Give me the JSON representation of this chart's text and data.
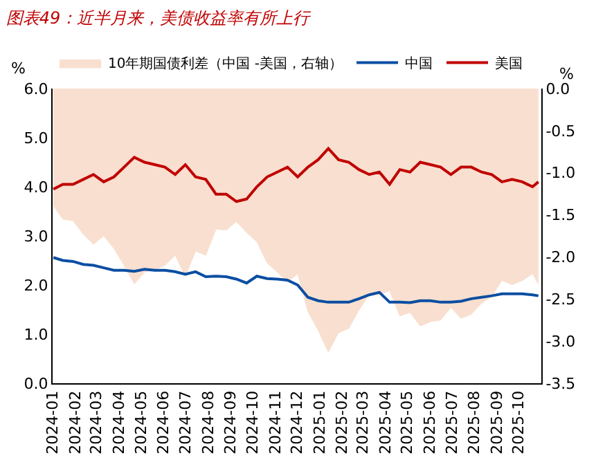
{
  "chart_data": {
    "type": "line",
    "title": "图表49：近半月来，美债收益率有所上行",
    "ylabel": "%",
    "y2label": "%",
    "x": [
      "2024-01-02",
      "2024-01-15",
      "2024-01-29",
      "2024-02-12",
      "2024-02-26",
      "2024-03-11",
      "2024-03-25",
      "2024-04-08",
      "2024-04-22",
      "2024-05-06",
      "2024-05-20",
      "2024-06-03",
      "2024-06-17",
      "2024-07-01",
      "2024-07-15",
      "2024-07-29",
      "2024-08-12",
      "2024-08-26",
      "2024-09-09",
      "2024-09-23",
      "2024-10-07",
      "2024-10-21",
      "2024-11-04",
      "2024-11-18",
      "2024-12-02",
      "2024-12-16",
      "2024-12-30",
      "2025-01-13",
      "2025-01-27",
      "2025-02-10",
      "2025-02-24",
      "2025-03-10",
      "2025-03-24",
      "2025-04-07",
      "2025-04-21",
      "2025-05-05",
      "2025-05-19",
      "2025-06-02",
      "2025-06-16",
      "2025-06-30",
      "2025-07-14",
      "2025-07-28",
      "2025-08-11",
      "2025-08-25",
      "2025-09-08",
      "2025-09-22",
      "2025-10-06",
      "2025-10-20",
      "2025-10-28"
    ],
    "series": [
      {
        "name": "10年期国债利差（中国 -美国，右轴）",
        "type": "area",
        "axis": "y2",
        "color": "#f9dfcf",
        "values": [
          -1.39,
          -1.55,
          -1.57,
          -1.73,
          -1.85,
          -1.75,
          -1.9,
          -2.1,
          -2.32,
          -2.18,
          -2.15,
          -2.1,
          -1.98,
          -2.23,
          -1.93,
          -1.98,
          -1.67,
          -1.68,
          -1.58,
          -1.71,
          -1.82,
          -2.07,
          -2.18,
          -2.3,
          -2.2,
          -2.65,
          -2.87,
          -3.13,
          -2.9,
          -2.85,
          -2.63,
          -2.45,
          -2.45,
          -2.4,
          -2.7,
          -2.66,
          -2.82,
          -2.77,
          -2.75,
          -2.6,
          -2.73,
          -2.68,
          -2.55,
          -2.47,
          -2.28,
          -2.33,
          -2.28,
          -2.2,
          -2.32
        ]
      },
      {
        "name": "中国",
        "color": "#0b4ea2",
        "values": [
          2.56,
          2.5,
          2.48,
          2.42,
          2.4,
          2.35,
          2.3,
          2.3,
          2.28,
          2.32,
          2.3,
          2.3,
          2.27,
          2.22,
          2.27,
          2.17,
          2.18,
          2.17,
          2.12,
          2.04,
          2.18,
          2.13,
          2.12,
          2.1,
          2.0,
          1.75,
          1.68,
          1.65,
          1.65,
          1.65,
          1.72,
          1.8,
          1.85,
          1.65,
          1.65,
          1.64,
          1.68,
          1.68,
          1.65,
          1.65,
          1.67,
          1.72,
          1.75,
          1.78,
          1.82,
          1.82,
          1.82,
          1.8,
          1.78
        ]
      },
      {
        "name": "美国",
        "color": "#c00000",
        "values": [
          3.95,
          4.05,
          4.05,
          4.15,
          4.25,
          4.1,
          4.2,
          4.4,
          4.6,
          4.5,
          4.45,
          4.4,
          4.25,
          4.45,
          4.2,
          4.15,
          3.85,
          3.85,
          3.7,
          3.75,
          4.0,
          4.2,
          4.3,
          4.4,
          4.2,
          4.4,
          4.55,
          4.78,
          4.55,
          4.5,
          4.35,
          4.25,
          4.3,
          4.05,
          4.35,
          4.3,
          4.5,
          4.45,
          4.4,
          4.25,
          4.4,
          4.4,
          4.3,
          4.25,
          4.1,
          4.15,
          4.1,
          4.0,
          4.1
        ]
      }
    ],
    "xlim": [
      "2024-01-01",
      "2025-11-01"
    ],
    "xticks": [
      "2024-01",
      "2024-02",
      "2024-03",
      "2024-04",
      "2024-05",
      "2024-06",
      "2024-07",
      "2024-08",
      "2024-09",
      "2024-10",
      "2024-11",
      "2024-12",
      "2025-01",
      "2025-02",
      "2025-03",
      "2025-04",
      "2025-05",
      "2025-06",
      "2025-07",
      "2025-08",
      "2025-09",
      "2025-10"
    ],
    "ylim": [
      0,
      6
    ],
    "yticks": [
      {
        "value": 0,
        "label": "0.0"
      },
      {
        "value": 1,
        "label": "1.0"
      },
      {
        "value": 2,
        "label": "2.0"
      },
      {
        "value": 3,
        "label": "3.0"
      },
      {
        "value": 4,
        "label": "4.0"
      },
      {
        "value": 5,
        "label": "5.0"
      },
      {
        "value": 6,
        "label": "6.0"
      }
    ],
    "y2lim": [
      -3.5,
      0
    ],
    "y2ticks": [
      {
        "value": -3.5,
        "label": "-3.5"
      },
      {
        "value": -3,
        "label": "-3.0"
      },
      {
        "value": -2.5,
        "label": "-2.5"
      },
      {
        "value": -2,
        "label": "-2.0"
      },
      {
        "value": -1.5,
        "label": "-1.5"
      },
      {
        "value": -1,
        "label": "-1.0"
      },
      {
        "value": -0.5,
        "label": "-0.5"
      },
      {
        "value": 0,
        "label": "0.0"
      }
    ],
    "grid": false,
    "legend": "top",
    "marker": "none",
    "line_style": "solid"
  }
}
